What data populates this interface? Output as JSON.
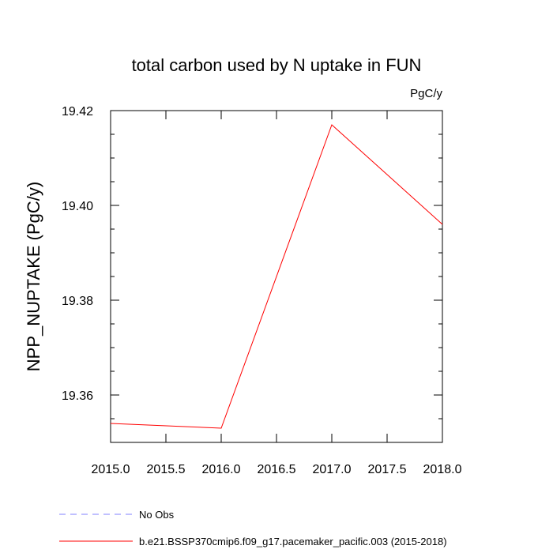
{
  "chart_data": {
    "type": "line",
    "title": "total carbon used by N uptake in FUN",
    "units_label": "PgC/y",
    "ylabel": "NPP_NUPTAKE  (PgC/y)",
    "xlabel": "",
    "xlim": [
      2015.0,
      2018.0
    ],
    "ylim": [
      19.35,
      19.42
    ],
    "x_ticks": [
      "2015.0",
      "2015.5",
      "2016.0",
      "2016.5",
      "2017.0",
      "2017.5",
      "2018.0"
    ],
    "y_ticks": [
      "19.36",
      "19.38",
      "19.40",
      "19.42"
    ],
    "grid": false,
    "legend_position": "bottom-left",
    "series": [
      {
        "name": "b.e21.BSSP370cmip6.f09_g17.pacemaker_pacific.003 (2015-2018)",
        "color": "#ff0000",
        "dashed": false,
        "x": [
          2015,
          2016,
          2017,
          2018
        ],
        "y": [
          19.354,
          19.353,
          19.417,
          19.396
        ]
      }
    ],
    "legend": [
      {
        "label": "No Obs",
        "color": "#8080ff",
        "dashed": true
      },
      {
        "label": "b.e21.BSSP370cmip6.f09_g17.pacemaker_pacific.003 (2015-2018)",
        "color": "#ff0000",
        "dashed": false
      }
    ]
  }
}
